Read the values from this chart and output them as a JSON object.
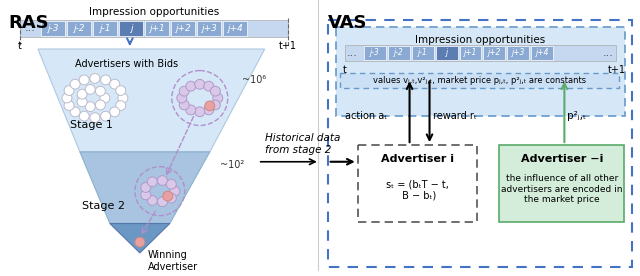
{
  "title_ras": "RAS",
  "title_vas": "VAS",
  "impression_label": "Impression opportunities",
  "slot_labels": [
    "j-3",
    "j-2",
    "j-1",
    "j",
    "j+1",
    "j+2",
    "j+3",
    "j+4"
  ],
  "t_label": "t",
  "t1_label": "t + 1",
  "dots": "...",
  "stage1_label": "Stage 1",
  "stage2_label": "Stage 2",
  "advertisers_label": "Advertisers with Bids",
  "winning_label": "Winning\nAdvertiser",
  "historical_label": "Historical data\nfrom stage 2",
  "scale1_label": "~10⁶",
  "scale2_label": "~10²",
  "action_label": "action aₜ",
  "reward_label": "reward rₜ",
  "adv_i_title": "Advertiser i",
  "adv_i_state": "sₜ = (bₜT − t,\n B − bₜ)",
  "adv_ni_title": "Advertiser −i",
  "adv_ni_text": "the influence of all other\nadvertisers are encoded in\nthe market price",
  "values_label": "values vⱼ,ₜ,v²ⱼ,ₜ, market price pⱼ,ₜ, p²ⱼ,ₜ are constants",
  "p2_label": "p²ⱼ,ₜ",
  "color_slot_dark": "#5b7db1",
  "color_slot_light": "#8aaad4",
  "color_slot_bg": "#c5d8f0",
  "color_funnel_light": "#d6e8f7",
  "color_funnel_dark": "#a8c4e0",
  "color_funnel_darkest": "#6a97c4",
  "color_circle_fill": "#d9c8e8",
  "color_circle_stroke": "#b09acc",
  "color_highlight": "#e8a0a0",
  "color_green_fill": "#d4edda",
  "color_green_stroke": "#5aaa6a",
  "color_blue_dashed_outer": "#4472c4",
  "color_blue_dashed_inner": "#6699cc",
  "color_values_bg": "#cce0f5",
  "color_arrow": "#4472c4"
}
